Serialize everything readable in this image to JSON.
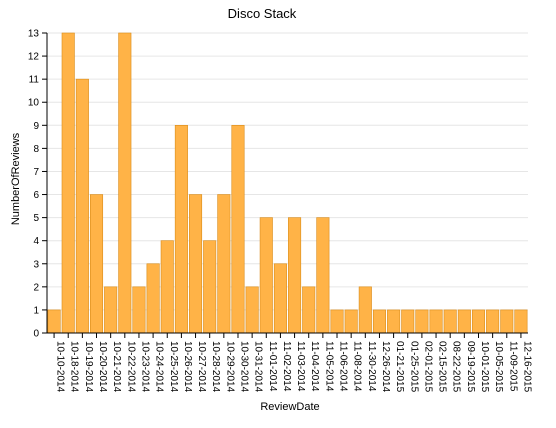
{
  "chart_data": {
    "type": "bar",
    "title": "Disco Stack",
    "xlabel": "ReviewDate",
    "ylabel": "NumberOfReviews",
    "ylim": [
      0,
      13
    ],
    "yticks": [
      0,
      1,
      2,
      3,
      4,
      5,
      6,
      7,
      8,
      9,
      10,
      11,
      12,
      13
    ],
    "grid": true,
    "bar_color": "#ffb347",
    "bar_stroke": "#d98c1a",
    "grid_color": "#e6e6e6",
    "categories": [
      "10-10-2014",
      "10-18-2014",
      "10-19-2014",
      "10-20-2014",
      "10-21-2014",
      "10-22-2014",
      "10-23-2014",
      "10-24-2014",
      "10-25-2014",
      "10-26-2014",
      "10-27-2014",
      "10-28-2014",
      "10-29-2014",
      "10-30-2014",
      "10-31-2014",
      "11-01-2014",
      "11-02-2014",
      "11-03-2014",
      "11-04-2014",
      "11-05-2014",
      "11-06-2014",
      "11-08-2014",
      "11-30-2014",
      "12-26-2014",
      "01-21-2015",
      "01-25-2015",
      "02-01-2015",
      "02-15-2015",
      "08-22-2015",
      "09-19-2015",
      "10-01-2015",
      "10-05-2015",
      "11-09-2015",
      "12-16-2015"
    ],
    "values": [
      1,
      13,
      11,
      6,
      2,
      13,
      2,
      3,
      4,
      9,
      6,
      4,
      6,
      9,
      2,
      5,
      3,
      5,
      2,
      5,
      1,
      1,
      2,
      1,
      1,
      1,
      1,
      1,
      1,
      1,
      1,
      1,
      1,
      1
    ]
  }
}
